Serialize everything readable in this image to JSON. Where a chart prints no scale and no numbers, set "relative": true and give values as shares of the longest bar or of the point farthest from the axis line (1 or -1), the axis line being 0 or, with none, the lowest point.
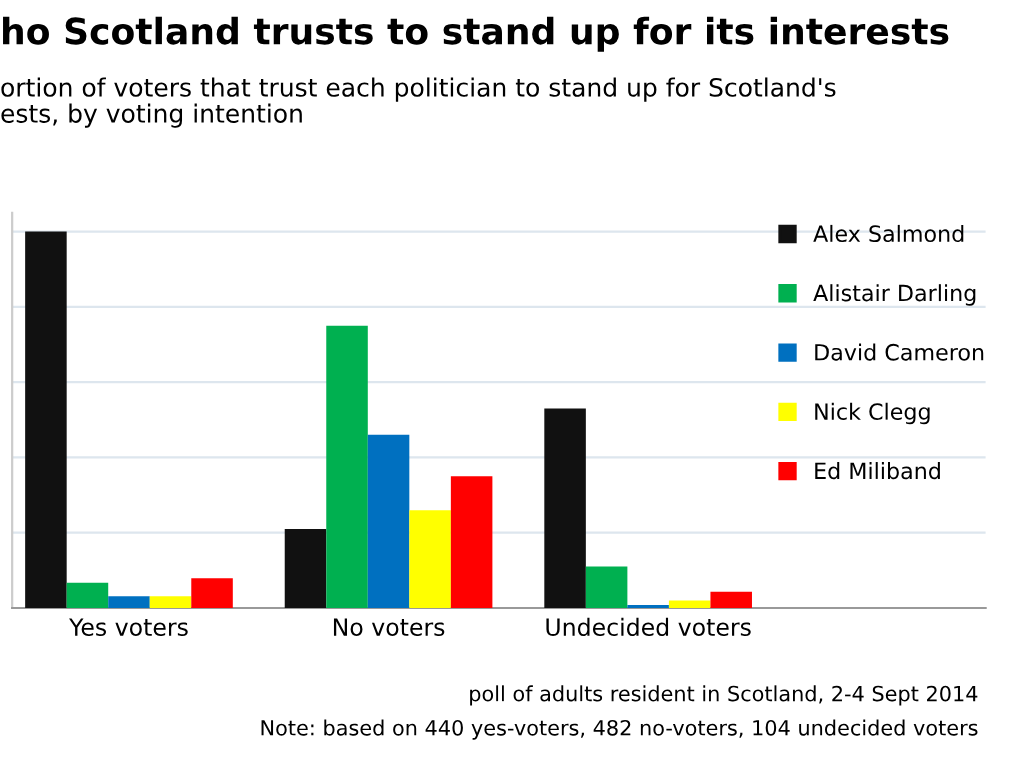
{
  "chart_data": {
    "type": "bar",
    "title": "ho Scotland trusts to stand up for its interests",
    "subtitle": "ortion of voters that trust each politician to stand up for Scotland's\nests, by voting intention",
    "categories": [
      "Yes voters",
      "No voters",
      "Undecided voters"
    ],
    "relative": true,
    "grid": "y",
    "legend": "top right",
    "series": [
      {
        "name": "Alex Salmond",
        "color": "#111111",
        "values": [
          1,
          0.21,
          0.53
        ]
      },
      {
        "name": "Alistair Darling",
        "color": "#00b050",
        "values": [
          0.067,
          0.75,
          0.11
        ]
      },
      {
        "name": "David Cameron",
        "color": "#0070c0",
        "values": [
          0.031,
          0.46,
          0.008
        ]
      },
      {
        "name": "Nick Clegg",
        "color": "#ffff00",
        "values": [
          0.031,
          0.26,
          0.02
        ]
      },
      {
        "name": "Ed Miliband",
        "color": "#ff0000",
        "values": [
          0.079,
          0.35,
          0.043
        ]
      }
    ],
    "annotations": [
      "poll of adults resident in Scotland, 2-4 Sept 2014",
      "Note: based on 440 yes-voters, 482 no-voters, 104 undecided voters"
    ]
  }
}
